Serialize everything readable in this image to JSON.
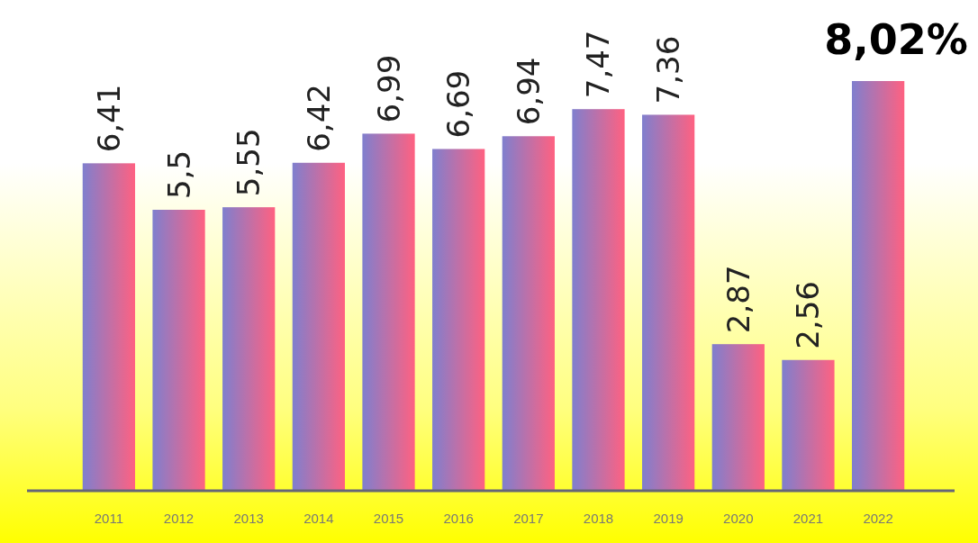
{
  "chart_data": {
    "type": "bar",
    "categories": [
      "2011",
      "2012",
      "2013",
      "2014",
      "2015",
      "2016",
      "2017",
      "2018",
      "2019",
      "2020",
      "2021",
      "2022"
    ],
    "values": [
      6.41,
      5.5,
      5.55,
      6.42,
      6.99,
      6.69,
      6.94,
      7.47,
      7.36,
      2.87,
      2.56,
      8.02
    ],
    "value_labels": [
      "6,41",
      "5,5",
      "5,55",
      "6,42",
      "6,99",
      "6,69",
      "6,94",
      "7,47",
      "7,36",
      "2,87",
      "2,56",
      "8,02%"
    ],
    "color": "#7f7fce"
  }
}
